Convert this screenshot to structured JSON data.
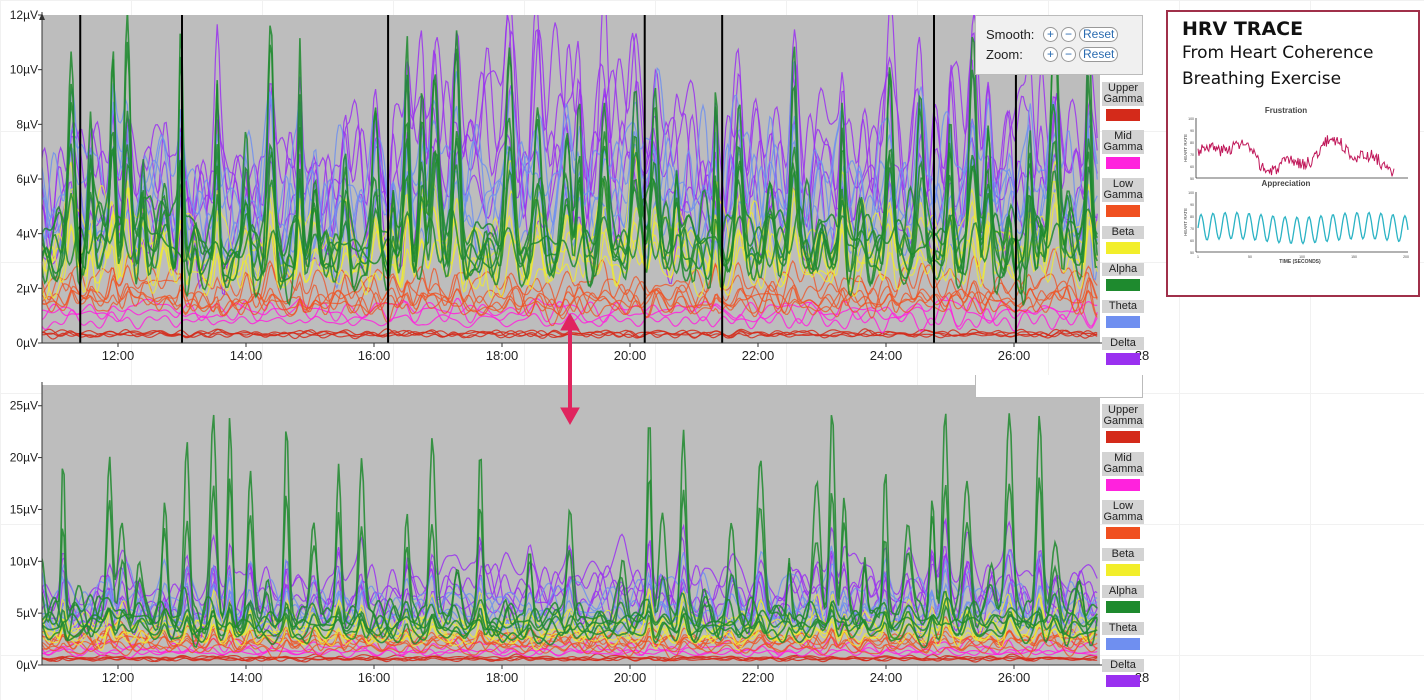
{
  "chart_data": [
    {
      "type": "line",
      "name": "top",
      "ylabel_unit": "µV",
      "ylim": [
        0,
        12
      ],
      "yticks": [
        "0µV",
        "2µV",
        "4µV",
        "6µV",
        "8µV",
        "10µV",
        "12µV"
      ],
      "ytick_values": [
        0,
        2,
        4,
        6,
        8,
        10,
        12
      ],
      "xlim_hours": [
        10.8,
        27.3
      ],
      "xticks": [
        "12:00",
        "14:00",
        "16:00",
        "18:00",
        "20:00",
        "22:00",
        "24:00",
        "26:00",
        "28"
      ],
      "xtick_values": [
        12,
        14,
        16,
        18,
        20,
        22,
        24,
        26,
        28
      ],
      "markers_hours": [
        11.41,
        13.0,
        16.22,
        20.23,
        21.44,
        24.75,
        26.03
      ],
      "profile_hours": [
        11,
        12,
        13,
        14,
        15,
        16,
        17,
        18,
        19,
        20,
        21,
        22,
        23,
        24,
        25,
        26,
        27
      ],
      "series": [
        {
          "name": "Upper Gamma",
          "color": "#d42a1a",
          "channels": 4,
          "values": [
            0.3,
            0.3,
            0.3,
            0.3,
            0.3,
            0.3,
            0.3,
            0.3,
            0.3,
            0.3,
            0.3,
            0.3,
            0.3,
            0.3,
            0.3,
            0.3,
            0.3
          ]
        },
        {
          "name": "Mid Gamma",
          "color": "#ff22dd",
          "channels": 3,
          "values": [
            1.0,
            1.0,
            1.0,
            1.0,
            1.0,
            1.0,
            1.0,
            1.0,
            1.0,
            1.0,
            1.0,
            1.0,
            1.0,
            1.0,
            1.0,
            1.0,
            1.0
          ]
        },
        {
          "name": "Low Gamma",
          "color": "#f05020",
          "channels": 6,
          "values": [
            1.8,
            2.0,
            1.7,
            1.6,
            1.7,
            1.7,
            1.7,
            1.6,
            1.6,
            1.7,
            1.7,
            1.8,
            1.7,
            1.8,
            1.8,
            1.7,
            1.9
          ]
        },
        {
          "name": "Beta",
          "color": "#f2ee2a",
          "channels": 5,
          "values": [
            3.0,
            3.2,
            2.8,
            2.6,
            2.8,
            2.8,
            3.0,
            2.8,
            2.8,
            3.2,
            3.0,
            3.0,
            3.0,
            3.0,
            3.0,
            3.0,
            3.2
          ]
        },
        {
          "name": "Alpha",
          "color": "#1e8a2e",
          "channels": 6,
          "values": [
            3.6,
            4.0,
            3.4,
            3.2,
            3.4,
            3.2,
            3.6,
            3.4,
            3.4,
            3.8,
            3.6,
            3.6,
            3.6,
            3.6,
            3.6,
            3.4,
            3.8
          ]
        },
        {
          "name": "Theta",
          "color": "#6f8ff0",
          "channels": 5,
          "values": [
            4.6,
            5.0,
            4.4,
            4.2,
            4.4,
            4.2,
            4.8,
            4.8,
            4.8,
            5.2,
            4.8,
            4.8,
            4.8,
            4.6,
            4.8,
            4.8,
            4.6
          ]
        },
        {
          "name": "Delta",
          "color": "#9a30f0",
          "channels": 5,
          "values": [
            5.0,
            5.2,
            4.8,
            5.0,
            5.2,
            5.2,
            6.4,
            6.8,
            6.6,
            6.6,
            5.8,
            5.6,
            6.0,
            6.0,
            6.2,
            6.0,
            5.6
          ]
        }
      ]
    },
    {
      "type": "line",
      "name": "bottom",
      "ylabel_unit": "µV",
      "ylim": [
        0,
        27
      ],
      "yticks": [
        "0µV",
        "5µV",
        "10µV",
        "15µV",
        "20µV",
        "25µV"
      ],
      "ytick_values": [
        0,
        5,
        10,
        15,
        20,
        25
      ],
      "xlim_hours": [
        10.8,
        27.3
      ],
      "xticks": [
        "12:00",
        "14:00",
        "16:00",
        "18:00",
        "20:00",
        "22:00",
        "24:00",
        "26:00",
        "28"
      ],
      "xtick_values": [
        12,
        14,
        16,
        18,
        20,
        22,
        24,
        26,
        28
      ],
      "profile_hours": [
        11,
        12,
        13,
        14,
        15,
        16,
        17,
        18,
        19,
        20,
        21,
        22,
        23,
        24,
        25,
        26,
        27
      ],
      "series": [
        {
          "name": "Upper Gamma",
          "color": "#d42a1a",
          "channels": 4,
          "values": [
            0.6,
            0.6,
            0.6,
            0.6,
            0.6,
            0.6,
            0.6,
            0.6,
            0.6,
            0.6,
            0.6,
            0.6,
            0.6,
            0.6,
            0.6,
            0.6,
            0.6
          ]
        },
        {
          "name": "Mid Gamma",
          "color": "#ff22dd",
          "channels": 3,
          "values": [
            1.4,
            1.4,
            1.4,
            1.4,
            1.4,
            1.4,
            1.4,
            1.4,
            1.4,
            1.4,
            1.4,
            1.4,
            1.4,
            1.4,
            1.4,
            1.4,
            1.4
          ]
        },
        {
          "name": "Low Gamma",
          "color": "#f05020",
          "channels": 6,
          "values": [
            2.0,
            2.2,
            2.0,
            2.0,
            2.0,
            2.0,
            2.0,
            2.0,
            2.0,
            2.0,
            2.0,
            2.0,
            2.0,
            2.0,
            2.0,
            2.0,
            2.2
          ]
        },
        {
          "name": "Beta",
          "color": "#f2ee2a",
          "channels": 5,
          "values": [
            3.2,
            3.4,
            3.2,
            3.0,
            3.2,
            3.0,
            3.2,
            3.2,
            3.2,
            3.4,
            3.2,
            3.2,
            3.2,
            3.2,
            3.2,
            3.2,
            3.4
          ]
        },
        {
          "name": "Alpha",
          "color": "#1e8a2e",
          "channels": 6,
          "values": [
            4.0,
            4.4,
            3.8,
            3.6,
            3.8,
            3.6,
            3.8,
            3.6,
            3.6,
            4.0,
            3.8,
            3.8,
            3.8,
            3.8,
            3.8,
            3.8,
            4.0
          ]
        },
        {
          "name": "Theta",
          "color": "#6f8ff0",
          "channels": 5,
          "values": [
            5.0,
            5.6,
            5.0,
            4.8,
            5.0,
            4.8,
            5.2,
            5.2,
            5.2,
            5.4,
            5.2,
            5.2,
            5.2,
            5.0,
            5.2,
            5.2,
            5.0
          ]
        },
        {
          "name": "Delta",
          "color": "#9a30f0",
          "channels": 5,
          "values": [
            5.6,
            6.0,
            5.6,
            6.0,
            6.2,
            6.2,
            7.0,
            7.4,
            7.2,
            7.2,
            6.6,
            6.4,
            6.8,
            6.8,
            7.0,
            6.8,
            6.4
          ]
        }
      ]
    }
  ],
  "legend": [
    {
      "label": "Upper\nGamma",
      "color": "#d42a1a"
    },
    {
      "label": "Mid\nGamma",
      "color": "#ff22dd"
    },
    {
      "label": "Low\nGamma",
      "color": "#f05020"
    },
    {
      "label": "Beta",
      "color": "#f2ee2a"
    },
    {
      "label": "Alpha",
      "color": "#1e8a2e"
    },
    {
      "label": "Theta",
      "color": "#6f8ff0"
    },
    {
      "label": "Delta",
      "color": "#9a30f0"
    }
  ],
  "controls": {
    "smooth_label": "Smooth:",
    "zoom_label": "Zoom:",
    "plus": "+",
    "minus": "−",
    "reset": "Reset"
  },
  "arrow_color": "#e0245e",
  "hrv": {
    "title": "HRV TRACE",
    "subtitle_1": "From Heart Coherence",
    "subtitle_2": "Breathing Exercise",
    "chart1_title": "Frustration",
    "chart2_title": "Appreciation",
    "ylabel": "HEART RATE",
    "xlabel": "TIME (SECONDS)",
    "yticks": [
      "100",
      "90",
      "80",
      "70",
      "60",
      "50"
    ],
    "xticks": [
      "1",
      "50",
      "100",
      "150",
      "200"
    ],
    "frustration_color": "#c0185a",
    "appreciation_color": "#2bb3c4"
  }
}
